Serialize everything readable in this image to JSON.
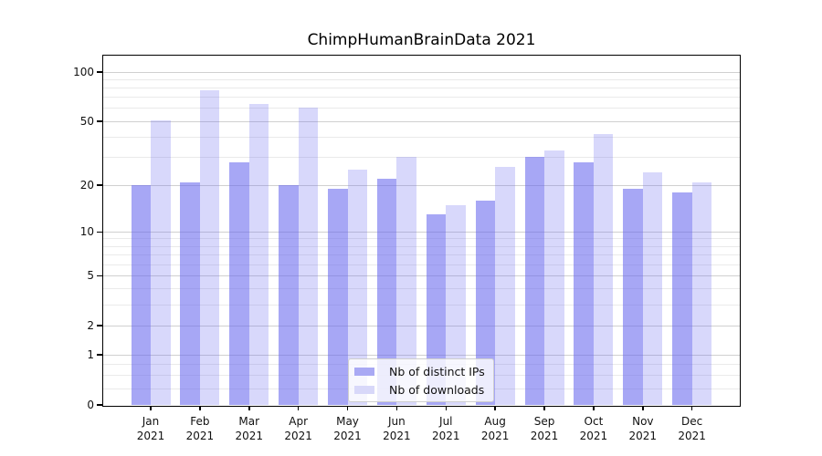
{
  "title": "ChimpHumanBrainData 2021",
  "legend": {
    "items": [
      {
        "label": "Nb of distinct IPs",
        "swatch": "#a9a9f4"
      },
      {
        "label": "Nb of downloads",
        "swatch": "#d8d8f9"
      }
    ]
  },
  "colors": {
    "bar_primary": "rgba(100,100,238,0.57)",
    "bar_secondary": "rgba(100,100,238,0.25)",
    "grid_major": "#d0d0d0",
    "grid_minor": "#eaeaea",
    "axis": "#000000",
    "text": "#111111"
  },
  "chart_data": {
    "type": "bar",
    "title": "ChimpHumanBrainData 2021",
    "x_categories": [
      "Jan",
      "Feb",
      "Mar",
      "Apr",
      "May",
      "Jun",
      "Jul",
      "Aug",
      "Sep",
      "Oct",
      "Nov",
      "Dec"
    ],
    "x_year": "2021",
    "series": [
      {
        "name": "Nb of distinct IPs",
        "values": [
          20,
          21,
          28,
          20,
          19,
          22,
          13,
          16,
          30,
          28,
          19,
          18
        ]
      },
      {
        "name": "Nb of downloads",
        "values": [
          51,
          77,
          64,
          61,
          25,
          30,
          15,
          26,
          33,
          42,
          24,
          21
        ]
      }
    ],
    "y_scale": "symlog-log1p",
    "y_major_ticks": [
      0,
      1,
      2,
      5,
      10,
      20,
      50,
      100
    ],
    "y_minor_ticks": [
      0.25,
      0.5,
      0.75,
      3,
      4,
      6,
      7,
      8,
      9,
      30,
      40,
      60,
      70,
      80,
      90
    ],
    "ylim": [
      0,
      126
    ],
    "grid": "on",
    "legend_position": "lower center"
  }
}
